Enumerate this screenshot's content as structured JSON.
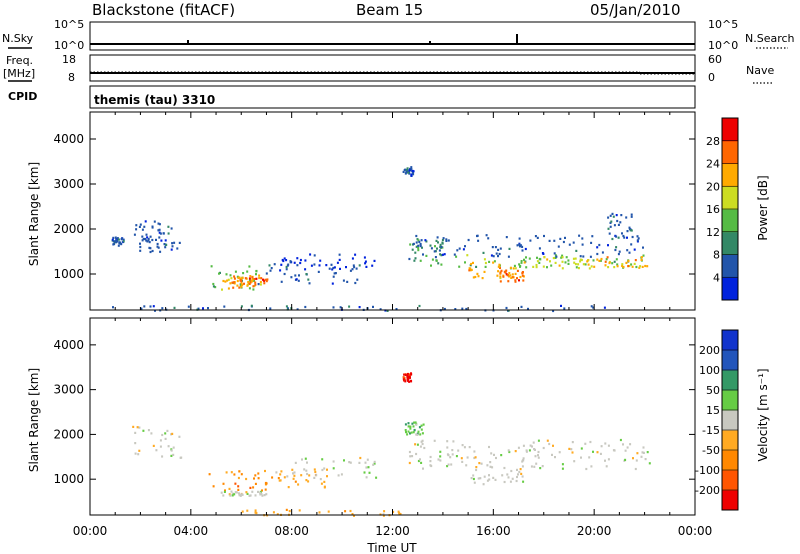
{
  "header": {
    "station": "Blackstone (fitACF)",
    "beam": "Beam 15",
    "date": "05/Jan/2010"
  },
  "top_panels": {
    "nsky": {
      "left_label": "N.Sky",
      "left_top_tick": "10^5",
      "left_bottom_tick": "10^0",
      "right_label": "N.Search",
      "right_top_tick": "10^5",
      "right_bottom_tick": "10^0"
    },
    "freq": {
      "left_label_1": "Freq.",
      "left_label_2": "[MHz]",
      "left_top_tick": "18",
      "left_bottom_tick": "8",
      "right_label": "Nave",
      "right_top_tick": "60",
      "right_bottom_tick": "0"
    },
    "cpid": {
      "label": "CPID",
      "program": "themis (tau) 3310"
    }
  },
  "chart_data": [
    {
      "type": "heatmap",
      "name": "power",
      "xlabel": "",
      "ylabel": "Slant Range [km]",
      "xlim": [
        "00:00",
        "00:00"
      ],
      "ylim": [
        200,
        4600
      ],
      "yticks": [
        "1000",
        "2000",
        "3000",
        "4000"
      ],
      "colorbar": {
        "label": "Power [dB]",
        "ticks": [
          "4",
          "8",
          "12",
          "16",
          "20",
          "24",
          "28"
        ],
        "colors": [
          "#0022dd",
          "#2255aa",
          "#338866",
          "#55bb44",
          "#ccdd22",
          "#ffaa00",
          "#ff6600",
          "#ee0000"
        ]
      },
      "regions": [
        {
          "t0": 0.8,
          "t1": 1.3,
          "r0": 1650,
          "r1": 1850,
          "level": 1
        },
        {
          "t0": 1.6,
          "t1": 3.2,
          "r0": 1800,
          "r1": 2200,
          "level": 1
        },
        {
          "t0": 1.9,
          "t1": 3.6,
          "r0": 1500,
          "r1": 1800,
          "level": 1
        },
        {
          "t0": 4.7,
          "t1": 6.6,
          "r0": 650,
          "r1": 1200,
          "level": 3
        },
        {
          "t0": 5.2,
          "t1": 6.8,
          "r0": 700,
          "r1": 1000,
          "level": 5
        },
        {
          "t0": 5.8,
          "t1": 7.0,
          "r0": 750,
          "r1": 950,
          "level": 6
        },
        {
          "t0": 6.6,
          "t1": 10.8,
          "r0": 800,
          "r1": 1250,
          "level": 1
        },
        {
          "t0": 7.5,
          "t1": 11.5,
          "r0": 1100,
          "r1": 1500,
          "level": 0
        },
        {
          "t0": 12.6,
          "t1": 14.0,
          "r0": 1300,
          "r1": 1800,
          "level": 2
        },
        {
          "t0": 13.0,
          "t1": 22.2,
          "r0": 1150,
          "r1": 1450,
          "level": 3
        },
        {
          "t0": 15.0,
          "t1": 17.3,
          "r0": 900,
          "r1": 1300,
          "level": 5
        },
        {
          "t0": 16.2,
          "t1": 17.2,
          "r0": 850,
          "r1": 1100,
          "level": 6
        },
        {
          "t0": 17.5,
          "t1": 20.0,
          "r0": 1150,
          "r1": 1400,
          "level": 4
        },
        {
          "t0": 19.5,
          "t1": 22.1,
          "r0": 1100,
          "r1": 1400,
          "level": 5
        },
        {
          "t0": 12.7,
          "t1": 22.0,
          "r0": 1400,
          "r1": 1900,
          "level": 1
        },
        {
          "t0": 0.5,
          "t1": 22.4,
          "r0": 200,
          "r1": 320,
          "level": 1
        },
        {
          "t0": 12.4,
          "t1": 12.8,
          "r0": 3200,
          "r1": 3400,
          "level": 1
        },
        {
          "t0": 20.5,
          "t1": 21.5,
          "r0": 1800,
          "r1": 2400,
          "level": 1
        }
      ]
    },
    {
      "type": "heatmap",
      "name": "velocity",
      "xlabel": "Time UT",
      "ylabel": "Slant Range [km]",
      "xlim": [
        "00:00",
        "00:00"
      ],
      "ylim": [
        200,
        4600
      ],
      "xticks": [
        "00:00",
        "04:00",
        "08:00",
        "12:00",
        "16:00",
        "20:00",
        "00:00"
      ],
      "yticks": [
        "1000",
        "2000",
        "3000",
        "4000"
      ],
      "colorbar": {
        "label": "Velocity [m s⁻¹]",
        "ticks": [
          "-200",
          "-100",
          "-50",
          "-15",
          "15",
          "50",
          "100",
          "200"
        ],
        "colors": [
          "#ee0000",
          "#ff5500",
          "#ff8800",
          "#ffaa22",
          "#c8c8c0",
          "#66cc44",
          "#339966",
          "#2255bb",
          "#1133cc"
        ]
      },
      "regions": [
        {
          "t0": 1.6,
          "t1": 3.6,
          "r0": 1500,
          "r1": 2200,
          "level": 4
        },
        {
          "t0": 4.7,
          "t1": 7.0,
          "r0": 650,
          "r1": 1200,
          "level": 2
        },
        {
          "t0": 5.0,
          "t1": 7.0,
          "r0": 650,
          "r1": 750,
          "level": 4
        },
        {
          "t0": 6.8,
          "t1": 9.5,
          "r0": 800,
          "r1": 1250,
          "level": 3
        },
        {
          "t0": 8.0,
          "t1": 11.4,
          "r0": 1050,
          "r1": 1500,
          "level": 4
        },
        {
          "t0": 12.6,
          "t1": 22.2,
          "r0": 1250,
          "r1": 1900,
          "level": 4
        },
        {
          "t0": 15.0,
          "t1": 17.3,
          "r0": 900,
          "r1": 1250,
          "level": 4
        },
        {
          "t0": 6.0,
          "t1": 12.5,
          "r0": 200,
          "r1": 350,
          "level": 3
        },
        {
          "t0": 12.4,
          "t1": 12.7,
          "r0": 3200,
          "r1": 3400,
          "level": 0
        },
        {
          "t0": 12.4,
          "t1": 13.2,
          "r0": 2000,
          "r1": 2300,
          "level": 5
        }
      ]
    }
  ]
}
